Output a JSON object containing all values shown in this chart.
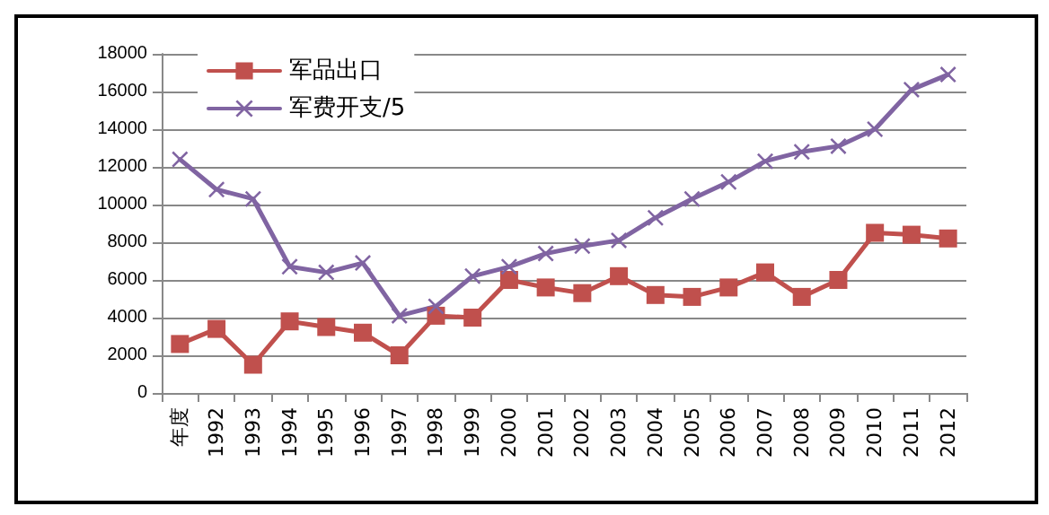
{
  "chart_data": {
    "type": "line",
    "categories": [
      "年度",
      "1992",
      "1993",
      "1994",
      "1995",
      "1996",
      "1997",
      "1998",
      "1999",
      "2000",
      "2001",
      "2002",
      "2003",
      "2004",
      "2005",
      "2006",
      "2007",
      "2008",
      "2009",
      "2010",
      "2011",
      "2012"
    ],
    "series": [
      {
        "name": "军品出口",
        "color": "#c0504d",
        "marker": "square",
        "values": [
          2600,
          3400,
          1500,
          3800,
          3500,
          3200,
          2000,
          4100,
          4000,
          6000,
          5600,
          5300,
          6200,
          5200,
          5100,
          5600,
          6400,
          5100,
          6000,
          8500,
          8400,
          8200
        ]
      },
      {
        "name": "军费开支/5",
        "color": "#8064a2",
        "marker": "cross",
        "values": [
          12400,
          10800,
          10300,
          6700,
          6400,
          6900,
          4100,
          4600,
          6200,
          6700,
          7400,
          7800,
          8100,
          9300,
          10300,
          11200,
          12300,
          12800,
          13100,
          14000,
          16100,
          16900
        ]
      }
    ],
    "ylim": [
      0,
      18000
    ],
    "yticks": [
      0,
      2000,
      4000,
      6000,
      8000,
      10000,
      12000,
      14000,
      16000,
      18000
    ],
    "grid": "y",
    "legend": "top left"
  }
}
